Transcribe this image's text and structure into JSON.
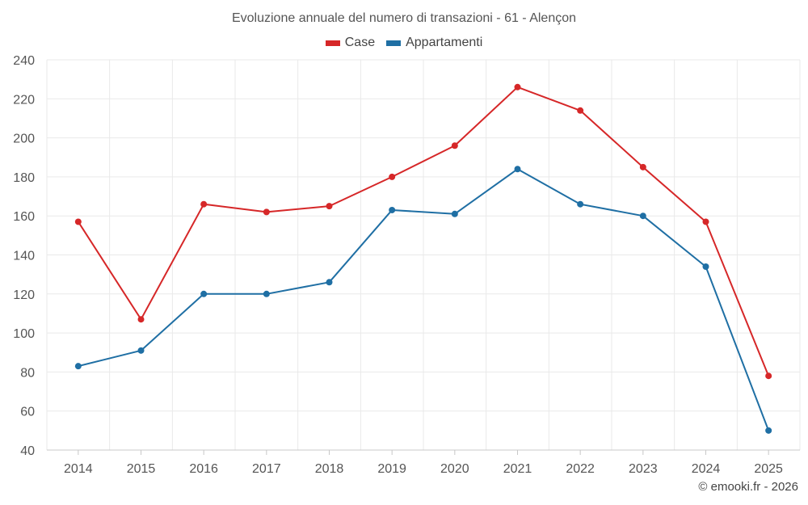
{
  "chart_data": {
    "type": "line",
    "title": "Evoluzione annuale del numero di transazioni - 61 - Alençon",
    "categories": [
      "2014",
      "2015",
      "2016",
      "2017",
      "2018",
      "2019",
      "2020",
      "2021",
      "2022",
      "2023",
      "2024",
      "2025"
    ],
    "series": [
      {
        "name": "Case",
        "color": "#d62728",
        "values": [
          157,
          107,
          166,
          162,
          165,
          180,
          196,
          226,
          214,
          185,
          157,
          78
        ]
      },
      {
        "name": "Appartamenti",
        "color": "#1f6fa4",
        "values": [
          83,
          91,
          120,
          120,
          126,
          163,
          161,
          184,
          166,
          160,
          134,
          50
        ]
      }
    ],
    "ylim": [
      40,
      240
    ],
    "yticks": [
      40,
      60,
      80,
      100,
      120,
      140,
      160,
      180,
      200,
      220,
      240
    ],
    "grid": true,
    "legend": "top-center",
    "xlabel": "",
    "ylabel": ""
  },
  "credit": "© emooki.fr - 2026"
}
